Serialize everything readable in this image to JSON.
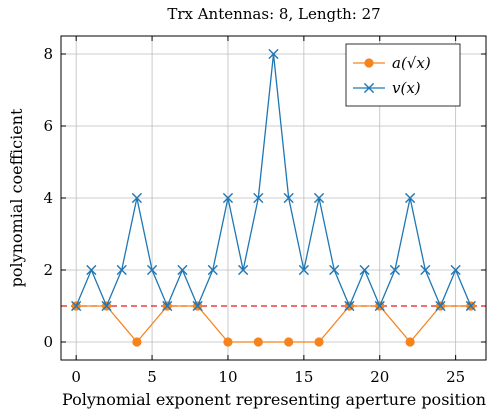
{
  "chart_data": {
    "type": "line",
    "title": "Trx Antennas: 8, Length: 27",
    "xlabel": "Polynomial exponent representing aperture position",
    "ylabel": "polynomial coefficient",
    "xlim": [
      -1,
      27
    ],
    "ylim": [
      -0.5,
      8.5
    ],
    "xticks": [
      0,
      5,
      10,
      15,
      20,
      25
    ],
    "yticks": [
      0,
      2,
      4,
      6,
      8
    ],
    "grid": true,
    "legend_position": "top-right",
    "reference_line": {
      "y": 1,
      "color": "#e8191c",
      "style": "dashed"
    },
    "series": [
      {
        "name": "a(√x)",
        "color": "#f5841f",
        "marker": "circle",
        "x": [
          0,
          2,
          4,
          6,
          8,
          10,
          12,
          14,
          16,
          18,
          20,
          22,
          24,
          26
        ],
        "values": [
          1,
          1,
          0,
          1,
          1,
          0,
          0,
          0,
          0,
          1,
          1,
          0,
          1,
          1
        ]
      },
      {
        "name": "v(x)",
        "color": "#1f77b4",
        "marker": "cross",
        "x": [
          0,
          1,
          2,
          3,
          4,
          5,
          6,
          7,
          8,
          9,
          10,
          11,
          12,
          13,
          14,
          15,
          16,
          17,
          18,
          19,
          20,
          21,
          22,
          23,
          24,
          25,
          26
        ],
        "values": [
          1,
          2,
          1,
          2,
          4,
          2,
          1,
          2,
          1,
          2,
          4,
          2,
          4,
          8,
          4,
          2,
          4,
          2,
          1,
          2,
          1,
          2,
          4,
          2,
          1,
          2,
          1
        ]
      }
    ]
  }
}
